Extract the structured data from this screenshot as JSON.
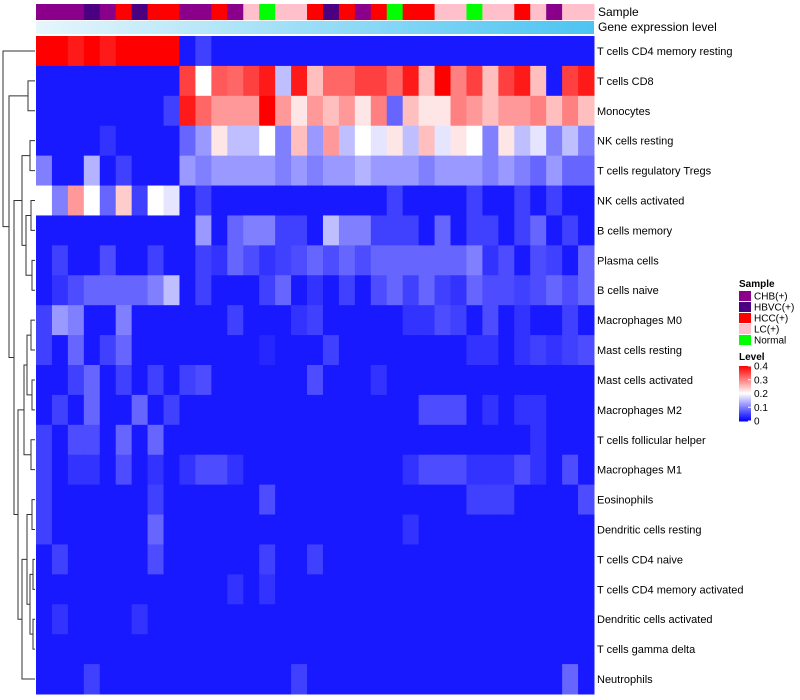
{
  "chart_data": {
    "type": "heatmap",
    "annotation_labels": [
      "Sample",
      "Gene expression level"
    ],
    "rows": [
      "T cells CD4 memory resting",
      "T cells CD8",
      "Monocytes",
      "NK cells resting",
      "T cells regulatory  Tregs",
      "NK cells activated",
      "B cells memory",
      "Plasma cells",
      "B cells naive",
      "Macrophages M0",
      "Mast cells resting",
      "Mast cells activated",
      "Macrophages M2",
      "T cells follicular helper",
      "Macrophages M1",
      "Eosinophils",
      "Dendritic cells resting",
      "T cells CD4 naive",
      "T cells CD4 memory activated",
      "Dendritic cells activated",
      "T cells gamma delta",
      "Neutrophils"
    ],
    "sample_groups": [
      {
        "name": "CHB(+)",
        "color": "#8B008B"
      },
      {
        "name": "HBVC(+)",
        "color": "#4B0082"
      },
      {
        "name": "HCC(+)",
        "color": "#FF0000"
      },
      {
        "name": "LC(+)",
        "color": "#FFC0CB"
      },
      {
        "name": "Normal",
        "color": "#00FF00"
      }
    ],
    "columns_sample": [
      0,
      0,
      0,
      1,
      0,
      2,
      1,
      2,
      2,
      0,
      0,
      2,
      0,
      3,
      4,
      3,
      3,
      2,
      1,
      2,
      0,
      2,
      4,
      2,
      2,
      3,
      3,
      4,
      3,
      3,
      2,
      3,
      0,
      3,
      3
    ],
    "columns_expression_level": [
      "gradient"
    ],
    "values": [
      [
        0.4,
        0.4,
        0.38,
        0.4,
        0.38,
        0.4,
        0.4,
        0.4,
        0.4,
        0.02,
        0.05,
        0.02,
        0.02,
        0.02,
        0.02,
        0.02,
        0.02,
        0.02,
        0.02,
        0.02,
        0.02,
        0.02,
        0.02,
        0.02,
        0.02,
        0.02,
        0.02,
        0.02,
        0.02,
        0.02,
        0.02,
        0.02,
        0.02,
        0.02,
        0.02
      ],
      [
        0.02,
        0.02,
        0.02,
        0.02,
        0.02,
        0.02,
        0.02,
        0.02,
        0.02,
        0.35,
        0.2,
        0.33,
        0.32,
        0.35,
        0.38,
        0.15,
        0.38,
        0.25,
        0.32,
        0.32,
        0.35,
        0.35,
        0.32,
        0.38,
        0.25,
        0.4,
        0.3,
        0.35,
        0.25,
        0.35,
        0.38,
        0.25,
        0.02,
        0.35,
        0.38
      ],
      [
        0.02,
        0.02,
        0.02,
        0.02,
        0.02,
        0.02,
        0.02,
        0.02,
        0.05,
        0.38,
        0.32,
        0.28,
        0.28,
        0.28,
        0.4,
        0.28,
        0.22,
        0.28,
        0.25,
        0.28,
        0.22,
        0.3,
        0.08,
        0.25,
        0.22,
        0.22,
        0.3,
        0.28,
        0.25,
        0.28,
        0.28,
        0.3,
        0.25,
        0.3,
        0.25
      ],
      [
        0.02,
        0.02,
        0.02,
        0.02,
        0.04,
        0.02,
        0.02,
        0.02,
        0.02,
        0.08,
        0.12,
        0.22,
        0.15,
        0.15,
        0.2,
        0.1,
        0.25,
        0.12,
        0.28,
        0.15,
        0.2,
        0.18,
        0.22,
        0.15,
        0.25,
        0.18,
        0.22,
        0.2,
        0.1,
        0.22,
        0.15,
        0.18,
        0.1,
        0.15,
        0.1
      ],
      [
        0.1,
        0.02,
        0.02,
        0.14,
        0.02,
        0.05,
        0.02,
        0.02,
        0.02,
        0.12,
        0.1,
        0.12,
        0.12,
        0.12,
        0.12,
        0.1,
        0.12,
        0.1,
        0.12,
        0.12,
        0.14,
        0.12,
        0.12,
        0.12,
        0.1,
        0.12,
        0.12,
        0.12,
        0.1,
        0.12,
        0.1,
        0.08,
        0.12,
        0.08,
        0.08
      ],
      [
        0.2,
        0.1,
        0.28,
        0.2,
        0.08,
        0.24,
        0.05,
        0.2,
        0.18,
        0.02,
        0.05,
        0.02,
        0.02,
        0.02,
        0.02,
        0.02,
        0.02,
        0.02,
        0.02,
        0.02,
        0.02,
        0.02,
        0.05,
        0.02,
        0.02,
        0.02,
        0.02,
        0.05,
        0.02,
        0.02,
        0.05,
        0.02,
        0.05,
        0.02,
        0.02
      ],
      [
        0.02,
        0.02,
        0.02,
        0.02,
        0.02,
        0.02,
        0.02,
        0.02,
        0.02,
        0.02,
        0.12,
        0.02,
        0.08,
        0.1,
        0.1,
        0.05,
        0.05,
        0.02,
        0.15,
        0.1,
        0.1,
        0.05,
        0.05,
        0.05,
        0.02,
        0.08,
        0.02,
        0.05,
        0.05,
        0.02,
        0.05,
        0.08,
        0.02,
        0.05,
        0.02
      ],
      [
        0.02,
        0.05,
        0.02,
        0.02,
        0.06,
        0.02,
        0.02,
        0.05,
        0.02,
        0.02,
        0.05,
        0.04,
        0.08,
        0.06,
        0.04,
        0.05,
        0.06,
        0.08,
        0.06,
        0.08,
        0.06,
        0.08,
        0.08,
        0.08,
        0.08,
        0.08,
        0.08,
        0.1,
        0.04,
        0.06,
        0.02,
        0.06,
        0.05,
        0.02,
        0.08
      ],
      [
        0.02,
        0.04,
        0.06,
        0.08,
        0.08,
        0.08,
        0.08,
        0.1,
        0.15,
        0.02,
        0.05,
        0.02,
        0.02,
        0.02,
        0.05,
        0.08,
        0.02,
        0.04,
        0.02,
        0.05,
        0.02,
        0.06,
        0.08,
        0.05,
        0.08,
        0.05,
        0.04,
        0.08,
        0.06,
        0.06,
        0.05,
        0.06,
        0.08,
        0.06,
        0.08
      ],
      [
        0.05,
        0.12,
        0.1,
        0.02,
        0.02,
        0.1,
        0.02,
        0.02,
        0.02,
        0.02,
        0.02,
        0.02,
        0.05,
        0.02,
        0.02,
        0.02,
        0.04,
        0.05,
        0.02,
        0.02,
        0.02,
        0.02,
        0.02,
        0.04,
        0.04,
        0.06,
        0.05,
        0.02,
        0.06,
        0.02,
        0.04,
        0.02,
        0.02,
        0.05,
        0.02
      ],
      [
        0.05,
        0.02,
        0.08,
        0.02,
        0.05,
        0.08,
        0.02,
        0.02,
        0.02,
        0.02,
        0.02,
        0.02,
        0.02,
        0.02,
        0.03,
        0.02,
        0.02,
        0.02,
        0.05,
        0.02,
        0.02,
        0.02,
        0.02,
        0.02,
        0.02,
        0.02,
        0.02,
        0.04,
        0.04,
        0.02,
        0.04,
        0.05,
        0.04,
        0.05,
        0.06
      ],
      [
        0.02,
        0.02,
        0.05,
        0.08,
        0.02,
        0.05,
        0.02,
        0.05,
        0.02,
        0.05,
        0.06,
        0.02,
        0.02,
        0.02,
        0.02,
        0.02,
        0.02,
        0.06,
        0.02,
        0.02,
        0.02,
        0.04,
        0.02,
        0.02,
        0.02,
        0.02,
        0.02,
        0.02,
        0.02,
        0.02,
        0.02,
        0.02,
        0.02,
        0.02,
        0.02
      ],
      [
        0.02,
        0.05,
        0.02,
        0.08,
        0.02,
        0.02,
        0.08,
        0.02,
        0.05,
        0.02,
        0.02,
        0.02,
        0.02,
        0.02,
        0.02,
        0.02,
        0.02,
        0.02,
        0.02,
        0.02,
        0.02,
        0.02,
        0.02,
        0.02,
        0.06,
        0.06,
        0.06,
        0.02,
        0.04,
        0.02,
        0.04,
        0.04,
        0.02,
        0.02,
        0.02
      ],
      [
        0.05,
        0.02,
        0.06,
        0.06,
        0.02,
        0.08,
        0.02,
        0.08,
        0.02,
        0.02,
        0.02,
        0.02,
        0.02,
        0.02,
        0.02,
        0.02,
        0.02,
        0.02,
        0.02,
        0.02,
        0.02,
        0.02,
        0.02,
        0.02,
        0.02,
        0.02,
        0.02,
        0.02,
        0.02,
        0.02,
        0.02,
        0.04,
        0.02,
        0.02,
        0.02
      ],
      [
        0.05,
        0.02,
        0.04,
        0.04,
        0.02,
        0.06,
        0.02,
        0.04,
        0.02,
        0.04,
        0.06,
        0.06,
        0.04,
        0.02,
        0.02,
        0.02,
        0.02,
        0.02,
        0.02,
        0.02,
        0.02,
        0.02,
        0.02,
        0.04,
        0.06,
        0.06,
        0.06,
        0.04,
        0.04,
        0.04,
        0.06,
        0.04,
        0.02,
        0.06,
        0.02
      ],
      [
        0.05,
        0.02,
        0.02,
        0.02,
        0.02,
        0.02,
        0.02,
        0.05,
        0.02,
        0.02,
        0.02,
        0.02,
        0.02,
        0.02,
        0.06,
        0.02,
        0.02,
        0.02,
        0.02,
        0.02,
        0.02,
        0.02,
        0.02,
        0.02,
        0.02,
        0.02,
        0.02,
        0.05,
        0.05,
        0.05,
        0.02,
        0.02,
        0.02,
        0.02,
        0.06
      ],
      [
        0.05,
        0.02,
        0.02,
        0.02,
        0.02,
        0.02,
        0.02,
        0.08,
        0.02,
        0.02,
        0.02,
        0.02,
        0.02,
        0.02,
        0.02,
        0.02,
        0.02,
        0.02,
        0.02,
        0.02,
        0.02,
        0.02,
        0.02,
        0.04,
        0.02,
        0.02,
        0.02,
        0.02,
        0.02,
        0.02,
        0.02,
        0.02,
        0.02,
        0.02,
        0.02
      ],
      [
        0.02,
        0.05,
        0.02,
        0.02,
        0.02,
        0.02,
        0.02,
        0.06,
        0.02,
        0.02,
        0.02,
        0.02,
        0.02,
        0.02,
        0.05,
        0.02,
        0.02,
        0.05,
        0.02,
        0.02,
        0.02,
        0.02,
        0.02,
        0.02,
        0.02,
        0.02,
        0.02,
        0.02,
        0.02,
        0.02,
        0.02,
        0.02,
        0.02,
        0.02,
        0.02
      ],
      [
        0.02,
        0.02,
        0.02,
        0.02,
        0.02,
        0.02,
        0.02,
        0.02,
        0.02,
        0.02,
        0.02,
        0.02,
        0.04,
        0.02,
        0.04,
        0.02,
        0.02,
        0.02,
        0.02,
        0.02,
        0.02,
        0.02,
        0.02,
        0.02,
        0.02,
        0.02,
        0.02,
        0.02,
        0.02,
        0.02,
        0.02,
        0.02,
        0.02,
        0.02,
        0.02
      ],
      [
        0.02,
        0.04,
        0.02,
        0.02,
        0.02,
        0.02,
        0.04,
        0.02,
        0.02,
        0.02,
        0.02,
        0.02,
        0.02,
        0.02,
        0.02,
        0.02,
        0.02,
        0.02,
        0.02,
        0.02,
        0.02,
        0.02,
        0.02,
        0.02,
        0.02,
        0.02,
        0.02,
        0.02,
        0.02,
        0.02,
        0.02,
        0.02,
        0.02,
        0.02,
        0.02
      ],
      [
        0.02,
        0.02,
        0.02,
        0.02,
        0.02,
        0.02,
        0.02,
        0.02,
        0.02,
        0.02,
        0.02,
        0.02,
        0.02,
        0.02,
        0.02,
        0.02,
        0.02,
        0.02,
        0.02,
        0.02,
        0.02,
        0.02,
        0.02,
        0.02,
        0.02,
        0.02,
        0.02,
        0.02,
        0.02,
        0.02,
        0.02,
        0.02,
        0.02,
        0.02,
        0.02
      ],
      [
        0.02,
        0.02,
        0.02,
        0.05,
        0.02,
        0.02,
        0.02,
        0.02,
        0.02,
        0.02,
        0.02,
        0.02,
        0.02,
        0.02,
        0.02,
        0.02,
        0.05,
        0.02,
        0.02,
        0.02,
        0.02,
        0.02,
        0.02,
        0.02,
        0.02,
        0.02,
        0.02,
        0.02,
        0.02,
        0.02,
        0.02,
        0.02,
        0.02,
        0.08,
        0.02
      ]
    ],
    "legend": {
      "sample_title": "Sample",
      "level_title": "Level",
      "level_ticks": [
        0.4,
        0.3,
        0.2,
        0.1,
        0
      ],
      "level_tick_labels": [
        "0.4",
        "0.3",
        "0.2",
        "0.1",
        "0"
      ]
    },
    "colors": {
      "low": "#0000FF",
      "mid": "#FFFFFF",
      "high": "#FF0000",
      "expr_bar_start": "#E6F6FC",
      "expr_bar_end": "#4CC4F2",
      "dendrogram": "#333333"
    },
    "vmin": 0,
    "vmax": 0.4,
    "vmid": 0.2
  }
}
